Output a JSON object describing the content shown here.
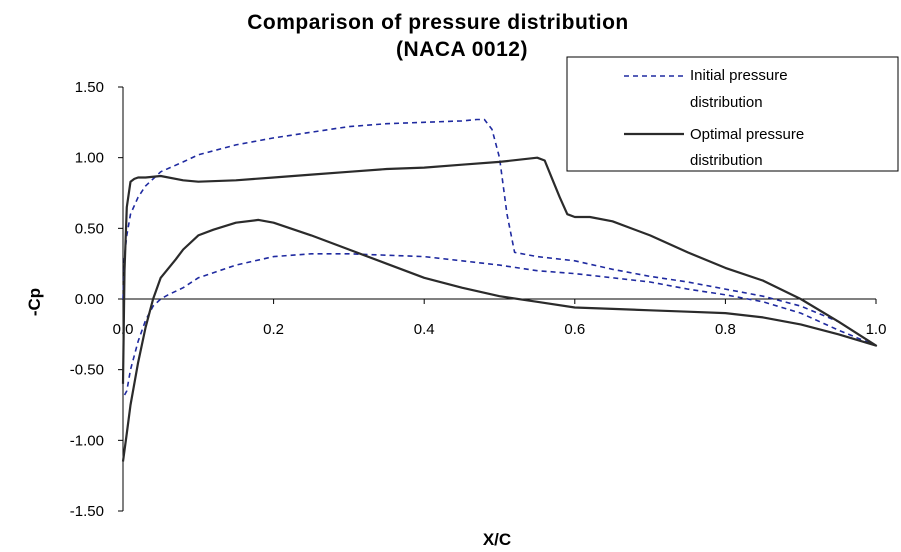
{
  "chart_data": {
    "type": "line",
    "title": "Comparison of pressure distribution",
    "subtitle": "(NACA 0012)",
    "xlabel": "X/C",
    "ylabel": "-Cp",
    "xlim": [
      0,
      1
    ],
    "ylim": [
      -1.5,
      1.5
    ],
    "x_ticks": [
      "0.0",
      "0.2",
      "0.4",
      "0.6",
      "0.8",
      "1.0"
    ],
    "y_ticks": [
      "1.50",
      "1.00",
      "0.50",
      "0.00",
      "-0.50",
      "-1.00",
      "-1.50"
    ],
    "grid": false,
    "legend": "top-right",
    "series": [
      {
        "name": "Initial pressure distribution",
        "color": "#1f2aa0",
        "dash": "dashed",
        "x": [
          0,
          0.002,
          0.005,
          0.01,
          0.02,
          0.03,
          0.05,
          0.08,
          0.1,
          0.15,
          0.2,
          0.25,
          0.3,
          0.35,
          0.4,
          0.45,
          0.47,
          0.48,
          0.49,
          0.5,
          0.51,
          0.52,
          0.55,
          0.6,
          0.65,
          0.7,
          0.75,
          0.8,
          0.85,
          0.9,
          0.95,
          1.0,
          0.95,
          0.9,
          0.85,
          0.8,
          0.75,
          0.7,
          0.65,
          0.6,
          0.55,
          0.5,
          0.45,
          0.4,
          0.35,
          0.3,
          0.25,
          0.2,
          0.15,
          0.1,
          0.08,
          0.06,
          0.05,
          0.04,
          0.035,
          0.03,
          0.02,
          0.01,
          0.005,
          0
        ],
        "y": [
          0,
          0.3,
          0.45,
          0.6,
          0.72,
          0.8,
          0.9,
          0.97,
          1.02,
          1.09,
          1.14,
          1.18,
          1.22,
          1.24,
          1.25,
          1.26,
          1.27,
          1.27,
          1.2,
          1.0,
          0.6,
          0.33,
          0.3,
          0.27,
          0.21,
          0.16,
          0.12,
          0.07,
          0.02,
          -0.05,
          -0.16,
          -0.33,
          -0.22,
          -0.1,
          -0.02,
          0.03,
          0.07,
          0.12,
          0.15,
          0.18,
          0.2,
          0.24,
          0.27,
          0.3,
          0.31,
          0.32,
          0.32,
          0.3,
          0.24,
          0.15,
          0.08,
          0.03,
          0.0,
          -0.05,
          -0.1,
          -0.15,
          -0.3,
          -0.5,
          -0.65,
          -0.7
        ]
      },
      {
        "name": "Optimal pressure distribution",
        "color": "#2b2b2b",
        "dash": "solid",
        "x": [
          0,
          0.002,
          0.005,
          0.01,
          0.015,
          0.02,
          0.03,
          0.05,
          0.08,
          0.1,
          0.15,
          0.2,
          0.25,
          0.3,
          0.35,
          0.4,
          0.45,
          0.5,
          0.55,
          0.56,
          0.57,
          0.58,
          0.59,
          0.6,
          0.62,
          0.65,
          0.7,
          0.75,
          0.8,
          0.85,
          0.9,
          0.95,
          1.0,
          0.95,
          0.9,
          0.85,
          0.8,
          0.75,
          0.7,
          0.65,
          0.6,
          0.55,
          0.5,
          0.45,
          0.4,
          0.35,
          0.3,
          0.25,
          0.2,
          0.18,
          0.15,
          0.12,
          0.1,
          0.08,
          0.07,
          0.05,
          0.04,
          0.03,
          0.02,
          0.01,
          0.005,
          0
        ],
        "y": [
          -0.6,
          0.2,
          0.65,
          0.83,
          0.85,
          0.86,
          0.86,
          0.87,
          0.84,
          0.83,
          0.84,
          0.86,
          0.88,
          0.9,
          0.92,
          0.93,
          0.95,
          0.97,
          1.0,
          0.98,
          0.85,
          0.72,
          0.6,
          0.58,
          0.58,
          0.55,
          0.45,
          0.33,
          0.22,
          0.13,
          0.0,
          -0.16,
          -0.33,
          -0.25,
          -0.18,
          -0.13,
          -0.1,
          -0.09,
          -0.08,
          -0.07,
          -0.06,
          -0.02,
          0.02,
          0.08,
          0.15,
          0.25,
          0.35,
          0.45,
          0.54,
          0.56,
          0.54,
          0.49,
          0.45,
          0.35,
          0.28,
          0.15,
          0.0,
          -0.2,
          -0.45,
          -0.75,
          -0.95,
          -1.15
        ]
      }
    ]
  }
}
